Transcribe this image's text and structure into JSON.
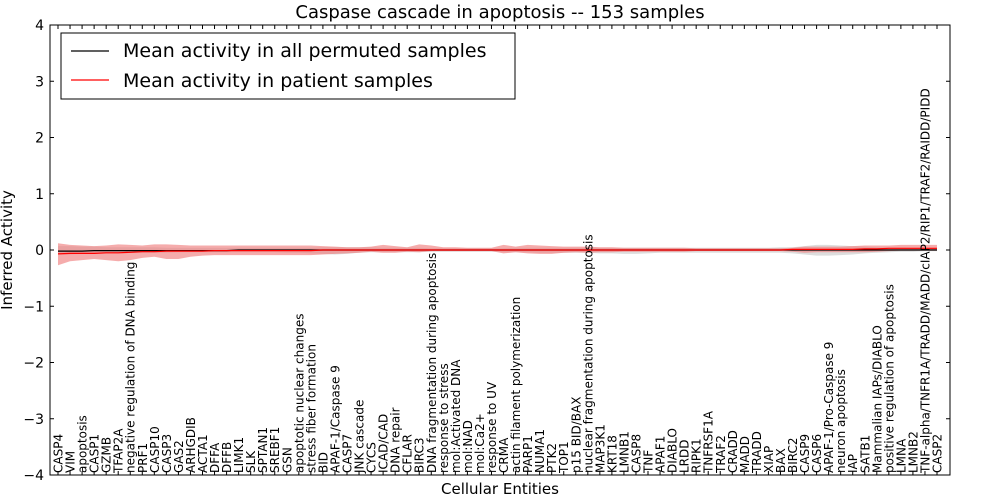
{
  "chart_data": {
    "type": "line",
    "title": "Caspase cascade in apoptosis -- 153 samples",
    "xlabel": "Cellular Entities",
    "ylabel": "Inferred Activity",
    "ylim": [
      -4,
      4
    ],
    "yticks": [
      -4,
      -3,
      -2,
      -1,
      0,
      1,
      2,
      3,
      4
    ],
    "ytick_labels": [
      "−4",
      "−3",
      "−2",
      "−1",
      "0",
      "1",
      "2",
      "3",
      "4"
    ],
    "grid": false,
    "legend_position": "top-left",
    "categories": [
      "CASP4",
      "VIM",
      "apoptosis",
      "CASP1",
      "GZMB",
      "TFAP2A",
      "negative regulation of DNA binding",
      "PRF1",
      "CASP10",
      "CASP3",
      "GAS2",
      "ARHGDIB",
      "ACTA1",
      "DFFA",
      "DFFB",
      "LIMK1",
      "SLK",
      "SPTAN1",
      "SREBF1",
      "GSN",
      "apoptotic nuclear changes",
      "stress fiber formation",
      "BID",
      "APAF-1/Caspase 9",
      "CASP7",
      "JNK cascade",
      "CYCS",
      "ICAD/CAD",
      "DNA repair",
      "CFLAR",
      "BIRC3",
      "DNA fragmentation during apoptosis",
      "response to stress",
      "mol:Activated DNA",
      "mol:NAD",
      "mol:Ca2+",
      "response to UV",
      "CRMA",
      "actin filament polymerization",
      "PARP1",
      "NUMA1",
      "PTK2",
      "TOP1",
      "p15 BID/BAX",
      "nuclear fragmentation during apoptosis",
      "MAP3K1",
      "KRT18",
      "LMNB1",
      "CASP8",
      "TNF",
      "APAF1",
      "DIABLO",
      "LRDD",
      "RIPK1",
      "TNFRSF1A",
      "TRAF2",
      "CRADD",
      "MADD",
      "TRADD",
      "XIAP",
      "BAX",
      "BIRC2",
      "CASP9",
      "CASP6",
      "APAF-1/Pro-Caspase 9",
      "neuron apoptosis",
      "IAP",
      "SATB1",
      "Mammalian IAPs/DIABLO",
      "positive regulation of apoptosis",
      "LMNA",
      "LMNB2",
      "TNF-alpha/TNFR1A/TRADD/MADD/cIAP2/RIP1/TRAF2/RAIDD/PIDD",
      "CASP2"
    ],
    "series": [
      {
        "name": "Mean activity in all permuted samples",
        "color": "#000000",
        "band_color": "#bbbbbb",
        "values": [
          -0.02,
          -0.02,
          -0.02,
          -0.01,
          -0.01,
          -0.01,
          -0.01,
          -0.01,
          -0.01,
          -0.01,
          -0.01,
          -0.01,
          -0.01,
          -0.01,
          -0.01,
          0.0,
          0.0,
          0.0,
          0.0,
          0.0,
          0.0,
          0.0,
          0.0,
          0.0,
          0.0,
          0.0,
          0.0,
          0.0,
          0.0,
          0.0,
          0.0,
          0.0,
          0.0,
          0.0,
          0.0,
          0.0,
          0.0,
          0.0,
          0.0,
          0.0,
          0.0,
          0.0,
          0.0,
          0.0,
          0.0,
          0.0,
          0.0,
          0.0,
          0.0,
          0.0,
          0.0,
          0.0,
          0.0,
          0.0,
          0.0,
          0.0,
          0.0,
          0.0,
          0.0,
          0.0,
          0.0,
          0.0,
          0.0,
          0.0,
          0.0,
          0.0,
          0.0,
          0.0,
          0.0,
          0.0,
          0.0,
          0.0,
          0.0,
          0.0
        ],
        "band_lower": [
          -0.08,
          -0.08,
          -0.07,
          -0.06,
          -0.06,
          -0.06,
          -0.05,
          -0.05,
          -0.05,
          -0.05,
          -0.04,
          -0.04,
          -0.04,
          -0.04,
          -0.04,
          -0.04,
          -0.04,
          -0.04,
          -0.04,
          -0.05,
          -0.05,
          -0.06,
          -0.07,
          -0.08,
          -0.07,
          -0.05,
          -0.04,
          -0.04,
          -0.04,
          -0.04,
          -0.04,
          -0.03,
          -0.03,
          -0.03,
          -0.03,
          -0.03,
          -0.03,
          -0.04,
          -0.04,
          -0.04,
          -0.05,
          -0.05,
          -0.05,
          -0.05,
          -0.05,
          -0.06,
          -0.06,
          -0.07,
          -0.07,
          -0.06,
          -0.05,
          -0.05,
          -0.05,
          -0.05,
          -0.05,
          -0.05,
          -0.05,
          -0.05,
          -0.05,
          -0.05,
          -0.05,
          -0.06,
          -0.08,
          -0.1,
          -0.1,
          -0.09,
          -0.08,
          -0.06,
          -0.05,
          -0.04,
          -0.03,
          -0.03,
          -0.02,
          -0.02
        ],
        "band_upper": [
          0.07,
          0.07,
          0.06,
          0.06,
          0.05,
          0.05,
          0.05,
          0.05,
          0.05,
          0.04,
          0.04,
          0.04,
          0.04,
          0.04,
          0.04,
          0.04,
          0.04,
          0.04,
          0.04,
          0.04,
          0.04,
          0.04,
          0.05,
          0.05,
          0.05,
          0.05,
          0.05,
          0.04,
          0.04,
          0.04,
          0.04,
          0.03,
          0.03,
          0.03,
          0.03,
          0.03,
          0.03,
          0.03,
          0.04,
          0.04,
          0.04,
          0.04,
          0.04,
          0.04,
          0.04,
          0.04,
          0.04,
          0.04,
          0.04,
          0.04,
          0.04,
          0.04,
          0.04,
          0.04,
          0.04,
          0.04,
          0.04,
          0.04,
          0.04,
          0.04,
          0.05,
          0.05,
          0.07,
          0.09,
          0.09,
          0.08,
          0.07,
          0.06,
          0.05,
          0.04,
          0.04,
          0.03,
          0.03,
          0.03
        ]
      },
      {
        "name": "Mean activity in patient samples",
        "color": "#ff0000",
        "band_color": "#f08080",
        "values": [
          -0.07,
          -0.06,
          -0.06,
          -0.06,
          -0.05,
          -0.05,
          -0.04,
          -0.03,
          -0.03,
          -0.02,
          -0.02,
          -0.02,
          -0.02,
          -0.01,
          -0.01,
          -0.01,
          -0.01,
          -0.01,
          -0.01,
          -0.01,
          -0.01,
          -0.01,
          0.0,
          0.0,
          0.0,
          0.0,
          0.0,
          0.0,
          0.0,
          0.0,
          0.0,
          0.0,
          0.0,
          0.0,
          0.0,
          0.0,
          0.0,
          0.0,
          0.0,
          0.0,
          0.0,
          0.0,
          0.0,
          0.0,
          0.0,
          0.0,
          0.0,
          0.0,
          0.0,
          0.0,
          0.0,
          0.0,
          0.0,
          0.0,
          0.0,
          0.0,
          0.0,
          0.0,
          0.0,
          0.0,
          0.0,
          0.01,
          0.01,
          0.01,
          0.01,
          0.01,
          0.01,
          0.02,
          0.02,
          0.03,
          0.03,
          0.03,
          0.03,
          0.03
        ],
        "band_lower": [
          -0.27,
          -0.2,
          -0.18,
          -0.16,
          -0.18,
          -0.2,
          -0.18,
          -0.14,
          -0.12,
          -0.16,
          -0.16,
          -0.12,
          -0.1,
          -0.09,
          -0.09,
          -0.09,
          -0.09,
          -0.09,
          -0.09,
          -0.09,
          -0.09,
          -0.09,
          -0.08,
          -0.07,
          -0.06,
          -0.05,
          -0.03,
          -0.05,
          -0.05,
          -0.03,
          -0.04,
          -0.02,
          -0.02,
          -0.02,
          -0.02,
          -0.02,
          -0.02,
          -0.06,
          -0.04,
          -0.06,
          -0.07,
          -0.07,
          -0.05,
          -0.04,
          -0.05,
          -0.04,
          -0.04,
          -0.03,
          -0.03,
          -0.03,
          -0.03,
          -0.03,
          -0.03,
          -0.02,
          -0.02,
          -0.02,
          -0.02,
          -0.02,
          -0.02,
          -0.02,
          -0.02,
          -0.03,
          -0.05,
          -0.04,
          -0.04,
          -0.04,
          -0.04,
          -0.04,
          -0.03,
          -0.02,
          -0.01,
          -0.01,
          -0.01,
          -0.01
        ],
        "band_upper": [
          0.12,
          0.09,
          0.08,
          0.07,
          0.08,
          0.1,
          0.09,
          0.08,
          0.1,
          0.1,
          0.09,
          0.08,
          0.08,
          0.08,
          0.08,
          0.08,
          0.08,
          0.08,
          0.08,
          0.08,
          0.08,
          0.08,
          0.07,
          0.06,
          0.05,
          0.05,
          0.06,
          0.09,
          0.07,
          0.05,
          0.1,
          0.08,
          0.05,
          0.05,
          0.04,
          0.04,
          0.04,
          0.09,
          0.06,
          0.09,
          0.08,
          0.07,
          0.06,
          0.06,
          0.06,
          0.05,
          0.05,
          0.04,
          0.04,
          0.04,
          0.04,
          0.04,
          0.04,
          0.03,
          0.03,
          0.03,
          0.03,
          0.03,
          0.03,
          0.03,
          0.03,
          0.04,
          0.06,
          0.06,
          0.06,
          0.06,
          0.07,
          0.08,
          0.08,
          0.08,
          0.09,
          0.09,
          0.09,
          0.09
        ]
      }
    ]
  }
}
